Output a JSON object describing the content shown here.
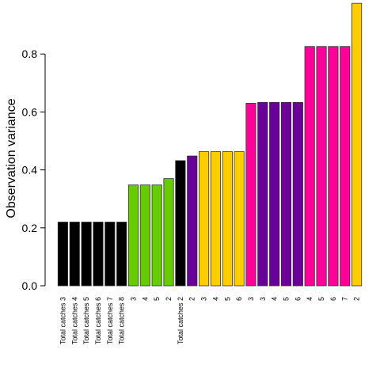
{
  "chart_data": {
    "type": "bar",
    "title": "",
    "xlabel": "",
    "ylabel": "Observation variance",
    "ylim": [
      0,
      0.97
    ],
    "yticks": [
      "0.0",
      "0.2",
      "0.4",
      "0.6",
      "0.8"
    ],
    "grid": false,
    "categories": [
      "Total catches 3",
      "Total catches 4",
      "Total catches 5",
      "Total catches 6",
      "Total catches 7",
      "Total catches 8",
      "3",
      "4",
      "5",
      "2",
      "Total catches 2",
      "2",
      "3",
      "4",
      "5",
      "6",
      "3",
      "3",
      "4",
      "5",
      "6",
      "4",
      "5",
      "6",
      "7",
      "2"
    ],
    "values": [
      0.22,
      0.22,
      0.22,
      0.22,
      0.22,
      0.22,
      0.348,
      0.348,
      0.348,
      0.37,
      0.432,
      0.448,
      0.463,
      0.463,
      0.463,
      0.463,
      0.63,
      0.633,
      0.633,
      0.633,
      0.633,
      0.826,
      0.826,
      0.826,
      0.826,
      0.975
    ],
    "bar_colors": [
      "#000000",
      "#000000",
      "#000000",
      "#000000",
      "#000000",
      "#000000",
      "#66cc00",
      "#66cc00",
      "#66cc00",
      "#66cc00",
      "#000000",
      "#6a0099",
      "#ffcc00",
      "#ffcc00",
      "#ffcc00",
      "#ffcc00",
      "#ff0099",
      "#6a0099",
      "#6a0099",
      "#6a0099",
      "#6a0099",
      "#ff0099",
      "#ff0099",
      "#ff0099",
      "#ff0099",
      "#ffcc00"
    ]
  }
}
